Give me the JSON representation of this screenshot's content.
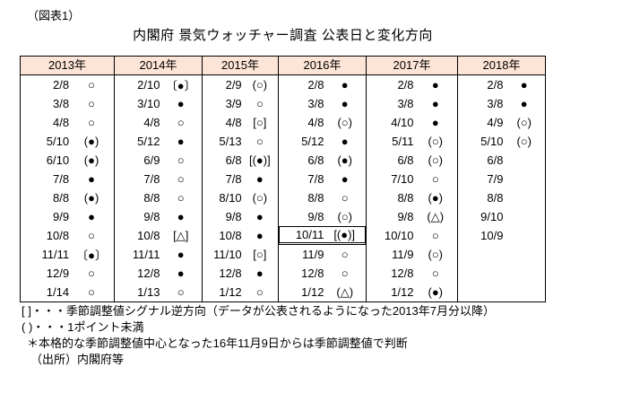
{
  "figure_label": "（図表1）",
  "title": "内閣府 景気ウォッチャー調査 公表日と変化方向",
  "colors": {
    "header_bg": "#fce4d6",
    "border": "#000000",
    "text": "#000000"
  },
  "table": {
    "columns": [
      {
        "year": "2013年",
        "rows": [
          {
            "date": "2/8",
            "mark": "○"
          },
          {
            "date": "3/8",
            "mark": "○"
          },
          {
            "date": "4/8",
            "mark": "○"
          },
          {
            "date": "5/10",
            "mark": "(●)"
          },
          {
            "date": "6/10",
            "mark": "(●)"
          },
          {
            "date": "7/8",
            "mark": "●"
          },
          {
            "date": "8/8",
            "mark": "(●)"
          },
          {
            "date": "9/9",
            "mark": "●"
          },
          {
            "date": "10/8",
            "mark": "○"
          },
          {
            "date": "11/11",
            "mark": "〔●〕"
          },
          {
            "date": "12/9",
            "mark": "○"
          },
          {
            "date": "1/14",
            "mark": "○"
          }
        ]
      },
      {
        "year": "2014年",
        "rows": [
          {
            "date": "2/10",
            "mark": "〔●〕"
          },
          {
            "date": "3/10",
            "mark": "●"
          },
          {
            "date": "4/8",
            "mark": "○"
          },
          {
            "date": "5/12",
            "mark": "●"
          },
          {
            "date": "6/9",
            "mark": "○"
          },
          {
            "date": "7/8",
            "mark": "○"
          },
          {
            "date": "8/8",
            "mark": "○"
          },
          {
            "date": "9/8",
            "mark": "●"
          },
          {
            "date": "10/8",
            "mark": "[△]"
          },
          {
            "date": "11/11",
            "mark": "●"
          },
          {
            "date": "12/8",
            "mark": "●"
          },
          {
            "date": "1/13",
            "mark": "○"
          }
        ]
      },
      {
        "year": "2015年",
        "rows": [
          {
            "date": "2/9",
            "mark": "(○)"
          },
          {
            "date": "3/9",
            "mark": "○"
          },
          {
            "date": "4/8",
            "mark": "[○]"
          },
          {
            "date": "5/13",
            "mark": "○"
          },
          {
            "date": "6/8",
            "mark": "[(●)]"
          },
          {
            "date": "7/8",
            "mark": "●"
          },
          {
            "date": "8/10",
            "mark": "(○)"
          },
          {
            "date": "9/8",
            "mark": "●"
          },
          {
            "date": "10/8",
            "mark": "●"
          },
          {
            "date": "11/10",
            "mark": "[○]"
          },
          {
            "date": "12/8",
            "mark": "●"
          },
          {
            "date": "1/12",
            "mark": "○"
          }
        ]
      },
      {
        "year": "2016年",
        "rows": [
          {
            "date": "2/8",
            "mark": "●"
          },
          {
            "date": "3/8",
            "mark": "●"
          },
          {
            "date": "4/8",
            "mark": "(○)"
          },
          {
            "date": "5/12",
            "mark": "●"
          },
          {
            "date": "6/8",
            "mark": "(●)"
          },
          {
            "date": "7/8",
            "mark": "●"
          },
          {
            "date": "8/8",
            "mark": "○"
          },
          {
            "date": "9/8",
            "mark": "(○)"
          },
          {
            "date": "10/11",
            "mark": "[(●)]",
            "boxed": true
          },
          {
            "date": "11/9",
            "mark": "○"
          },
          {
            "date": "12/8",
            "mark": "○"
          },
          {
            "date": "1/12",
            "mark": "(△)"
          }
        ]
      },
      {
        "year": "2017年",
        "rows": [
          {
            "date": "2/8",
            "mark": "●"
          },
          {
            "date": "3/8",
            "mark": "●"
          },
          {
            "date": "4/10",
            "mark": "●"
          },
          {
            "date": "5/11",
            "mark": "(○)"
          },
          {
            "date": "6/8",
            "mark": "(○)"
          },
          {
            "date": "7/10",
            "mark": "○"
          },
          {
            "date": "8/8",
            "mark": "(●)"
          },
          {
            "date": "9/8",
            "mark": "(△)"
          },
          {
            "date": "10/10",
            "mark": "○"
          },
          {
            "date": "11/9",
            "mark": "(○)"
          },
          {
            "date": "12/8",
            "mark": "○"
          },
          {
            "date": "1/12",
            "mark": "(●)"
          }
        ]
      },
      {
        "year": "2018年",
        "rows": [
          {
            "date": "2/8",
            "mark": "●"
          },
          {
            "date": "3/8",
            "mark": "●"
          },
          {
            "date": "4/9",
            "mark": "(○)"
          },
          {
            "date": "5/10",
            "mark": "(○)"
          },
          {
            "date": "6/8",
            "mark": ""
          },
          {
            "date": "7/9",
            "mark": ""
          },
          {
            "date": "8/8",
            "mark": ""
          },
          {
            "date": "9/10",
            "mark": ""
          },
          {
            "date": "10/9",
            "mark": ""
          },
          {
            "date": "",
            "mark": ""
          },
          {
            "date": "",
            "mark": ""
          },
          {
            "date": "",
            "mark": ""
          }
        ]
      }
    ]
  },
  "footnotes": [
    "[ ]・・・季節調整値シグナル逆方向（データが公表されるようになった2013年7月分以降）",
    "( )・・・1ポイント未満",
    "＊本格的な季節調整値中心となった16年11月9日からは季節調整値で判断",
    "（出所）内閣府等"
  ]
}
